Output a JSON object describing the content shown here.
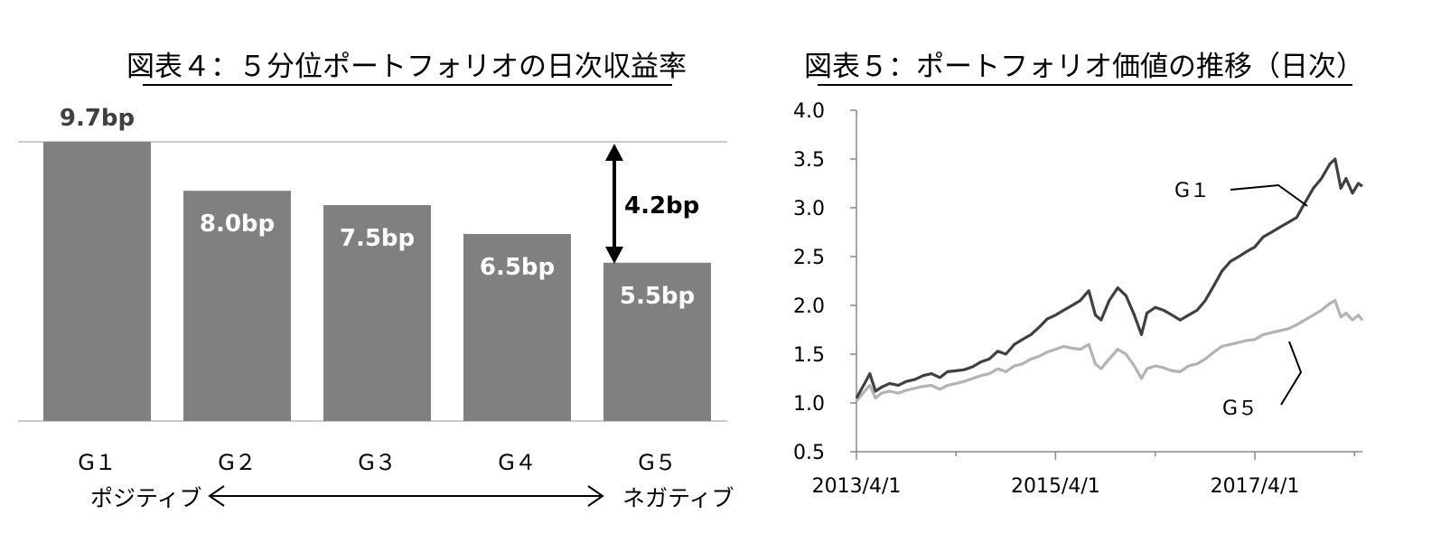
{
  "chart_data": [
    {
      "type": "bar",
      "title": "図表４：５分位ポートフォリオの日次収益率",
      "categories": [
        "G１",
        "G２",
        "G３",
        "G４",
        "G５"
      ],
      "values": [
        9.7,
        8.0,
        7.5,
        6.5,
        5.5
      ],
      "value_labels": [
        "9.7bp",
        "8.0bp",
        "7.5bp",
        "6.5bp",
        "5.5bp"
      ],
      "spread_label": "4.2bp",
      "direction_left": "ポジティブ",
      "direction_right": "ネガティブ",
      "bar_color": "#808080",
      "ylim": [
        0,
        9.7
      ]
    },
    {
      "type": "line",
      "title": "図表５：ポートフォリオ価値の推移（日次）",
      "x_ticks": [
        "2013/4/1",
        "2015/4/1",
        "2017/4/1"
      ],
      "x_range": [
        "2013-04-01",
        "2018-04-30"
      ],
      "y_ticks": [
        "0.5",
        "1.0",
        "1.5",
        "2.0",
        "2.5",
        "3.0",
        "3.5",
        "4.0"
      ],
      "ylim": [
        0.5,
        4.0
      ],
      "series": [
        {
          "name": "G１",
          "color": "#404040",
          "points": [
            [
              "2013-04-01",
              1.05
            ],
            [
              "2013-05-01",
              1.2
            ],
            [
              "2013-05-20",
              1.3
            ],
            [
              "2013-06-10",
              1.12
            ],
            [
              "2013-07-01",
              1.16
            ],
            [
              "2013-08-01",
              1.2
            ],
            [
              "2013-09-01",
              1.18
            ],
            [
              "2013-10-01",
              1.22
            ],
            [
              "2013-11-01",
              1.24
            ],
            [
              "2013-12-01",
              1.28
            ],
            [
              "2014-01-01",
              1.3
            ],
            [
              "2014-02-01",
              1.26
            ],
            [
              "2014-03-01",
              1.32
            ],
            [
              "2014-04-01",
              1.33
            ],
            [
              "2014-05-01",
              1.34
            ],
            [
              "2014-06-01",
              1.37
            ],
            [
              "2014-07-01",
              1.42
            ],
            [
              "2014-08-01",
              1.45
            ],
            [
              "2014-09-01",
              1.53
            ],
            [
              "2014-10-01",
              1.5
            ],
            [
              "2014-11-01",
              1.6
            ],
            [
              "2014-12-01",
              1.65
            ],
            [
              "2015-01-01",
              1.7
            ],
            [
              "2015-02-01",
              1.78
            ],
            [
              "2015-03-01",
              1.86
            ],
            [
              "2015-04-01",
              1.9
            ],
            [
              "2015-05-01",
              1.95
            ],
            [
              "2015-06-01",
              2.0
            ],
            [
              "2015-07-01",
              2.05
            ],
            [
              "2015-08-01",
              2.15
            ],
            [
              "2015-08-25",
              1.9
            ],
            [
              "2015-09-15",
              1.85
            ],
            [
              "2015-10-15",
              2.05
            ],
            [
              "2015-11-15",
              2.18
            ],
            [
              "2015-12-15",
              2.1
            ],
            [
              "2016-01-15",
              1.9
            ],
            [
              "2016-02-10",
              1.7
            ],
            [
              "2016-03-01",
              1.92
            ],
            [
              "2016-04-01",
              1.98
            ],
            [
              "2016-05-01",
              1.95
            ],
            [
              "2016-06-01",
              1.9
            ],
            [
              "2016-07-01",
              1.85
            ],
            [
              "2016-08-01",
              1.9
            ],
            [
              "2016-09-01",
              1.95
            ],
            [
              "2016-10-01",
              2.05
            ],
            [
              "2016-11-01",
              2.2
            ],
            [
              "2016-12-01",
              2.35
            ],
            [
              "2017-01-01",
              2.45
            ],
            [
              "2017-02-01",
              2.5
            ],
            [
              "2017-03-01",
              2.55
            ],
            [
              "2017-04-01",
              2.6
            ],
            [
              "2017-05-01",
              2.7
            ],
            [
              "2017-06-01",
              2.75
            ],
            [
              "2017-07-01",
              2.8
            ],
            [
              "2017-08-01",
              2.85
            ],
            [
              "2017-09-01",
              2.9
            ],
            [
              "2017-10-01",
              3.05
            ],
            [
              "2017-11-01",
              3.2
            ],
            [
              "2017-12-01",
              3.3
            ],
            [
              "2018-01-01",
              3.45
            ],
            [
              "2018-01-20",
              3.5
            ],
            [
              "2018-02-10",
              3.2
            ],
            [
              "2018-03-01",
              3.3
            ],
            [
              "2018-03-25",
              3.15
            ],
            [
              "2018-04-15",
              3.25
            ],
            [
              "2018-04-30",
              3.22
            ]
          ]
        },
        {
          "name": "G５",
          "color": "#b3b3b3",
          "points": [
            [
              "2013-04-01",
              1.02
            ],
            [
              "2013-05-01",
              1.12
            ],
            [
              "2013-05-20",
              1.18
            ],
            [
              "2013-06-10",
              1.05
            ],
            [
              "2013-07-01",
              1.1
            ],
            [
              "2013-08-01",
              1.12
            ],
            [
              "2013-09-01",
              1.1
            ],
            [
              "2013-10-01",
              1.13
            ],
            [
              "2013-11-01",
              1.15
            ],
            [
              "2013-12-01",
              1.17
            ],
            [
              "2014-01-01",
              1.18
            ],
            [
              "2014-02-01",
              1.14
            ],
            [
              "2014-03-01",
              1.18
            ],
            [
              "2014-04-01",
              1.2
            ],
            [
              "2014-05-01",
              1.22
            ],
            [
              "2014-06-01",
              1.25
            ],
            [
              "2014-07-01",
              1.28
            ],
            [
              "2014-08-01",
              1.3
            ],
            [
              "2014-09-01",
              1.35
            ],
            [
              "2014-10-01",
              1.32
            ],
            [
              "2014-11-01",
              1.38
            ],
            [
              "2014-12-01",
              1.4
            ],
            [
              "2015-01-01",
              1.45
            ],
            [
              "2015-02-01",
              1.48
            ],
            [
              "2015-03-01",
              1.52
            ],
            [
              "2015-04-01",
              1.55
            ],
            [
              "2015-05-01",
              1.58
            ],
            [
              "2015-06-01",
              1.56
            ],
            [
              "2015-07-01",
              1.55
            ],
            [
              "2015-08-01",
              1.6
            ],
            [
              "2015-08-25",
              1.4
            ],
            [
              "2015-09-15",
              1.35
            ],
            [
              "2015-10-15",
              1.45
            ],
            [
              "2015-11-15",
              1.55
            ],
            [
              "2015-12-15",
              1.5
            ],
            [
              "2016-01-15",
              1.38
            ],
            [
              "2016-02-10",
              1.25
            ],
            [
              "2016-03-01",
              1.35
            ],
            [
              "2016-04-01",
              1.38
            ],
            [
              "2016-05-01",
              1.36
            ],
            [
              "2016-06-01",
              1.33
            ],
            [
              "2016-07-01",
              1.32
            ],
            [
              "2016-08-01",
              1.38
            ],
            [
              "2016-09-01",
              1.4
            ],
            [
              "2016-10-01",
              1.45
            ],
            [
              "2016-11-01",
              1.52
            ],
            [
              "2016-12-01",
              1.58
            ],
            [
              "2017-01-01",
              1.6
            ],
            [
              "2017-02-01",
              1.62
            ],
            [
              "2017-03-01",
              1.64
            ],
            [
              "2017-04-01",
              1.65
            ],
            [
              "2017-05-01",
              1.7
            ],
            [
              "2017-06-01",
              1.72
            ],
            [
              "2017-07-01",
              1.74
            ],
            [
              "2017-08-01",
              1.76
            ],
            [
              "2017-09-01",
              1.8
            ],
            [
              "2017-10-01",
              1.85
            ],
            [
              "2017-11-01",
              1.9
            ],
            [
              "2017-12-01",
              1.95
            ],
            [
              "2018-01-01",
              2.02
            ],
            [
              "2018-01-20",
              2.05
            ],
            [
              "2018-02-10",
              1.88
            ],
            [
              "2018-03-01",
              1.92
            ],
            [
              "2018-03-25",
              1.85
            ],
            [
              "2018-04-15",
              1.9
            ],
            [
              "2018-04-30",
              1.85
            ]
          ]
        }
      ]
    }
  ]
}
